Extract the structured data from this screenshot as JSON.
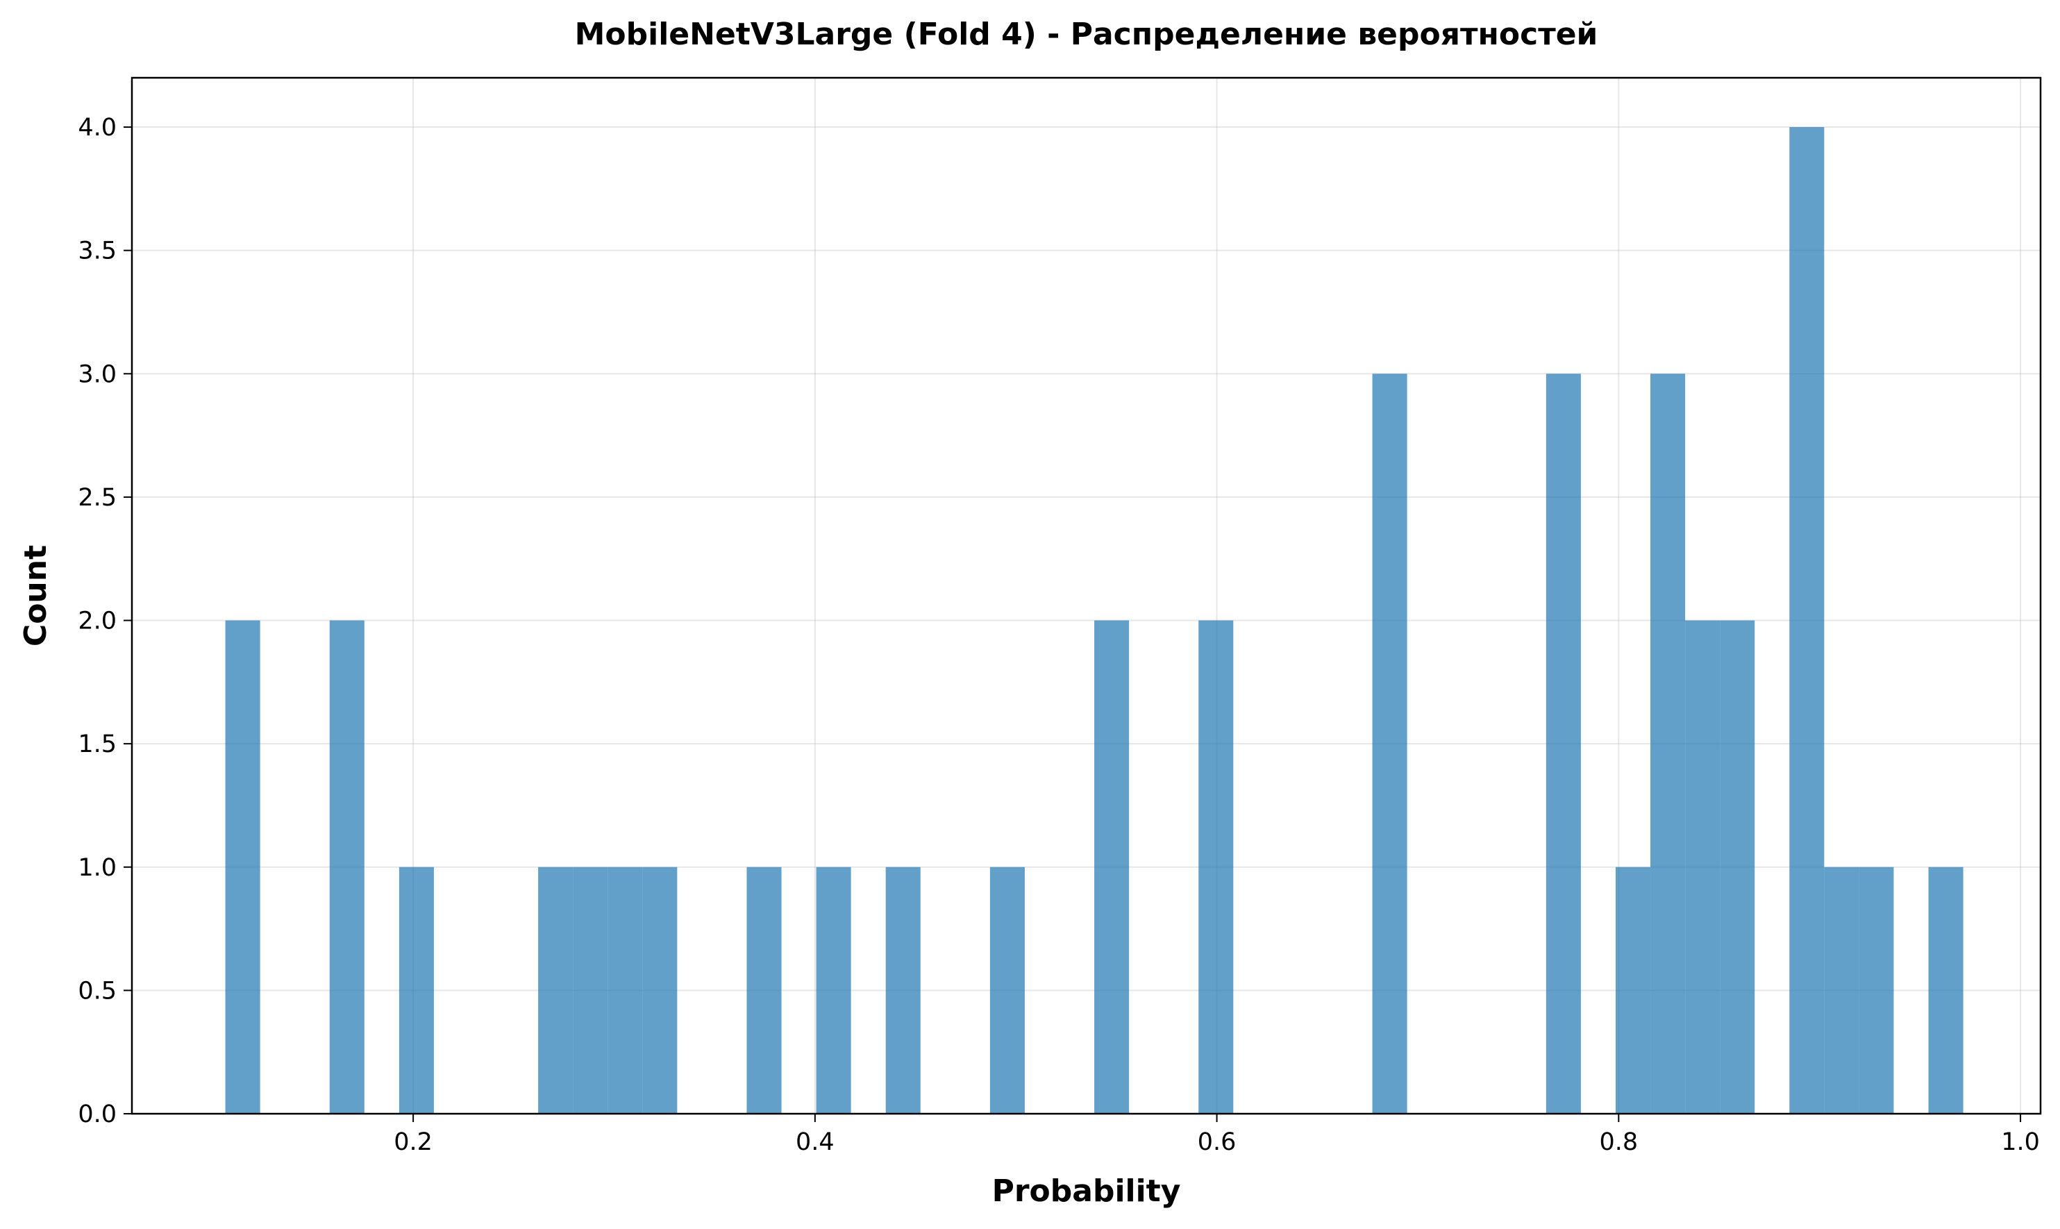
{
  "chart_data": {
    "type": "bar",
    "title": "MobileNetV3Large (Fold 4) - Распределение вероятностей",
    "xlabel": "Probability",
    "ylabel": "Count",
    "xlim": [
      0.06,
      1.01
    ],
    "ylim": [
      0.0,
      4.2
    ],
    "grid": true,
    "bin_width": 0.0173,
    "bars": [
      {
        "x0": 0.1065,
        "count": 2
      },
      {
        "x0": 0.1584,
        "count": 2
      },
      {
        "x0": 0.193,
        "count": 1
      },
      {
        "x0": 0.2622,
        "count": 1
      },
      {
        "x0": 0.2795,
        "count": 1
      },
      {
        "x0": 0.2968,
        "count": 1
      },
      {
        "x0": 0.3141,
        "count": 1
      },
      {
        "x0": 0.366,
        "count": 1
      },
      {
        "x0": 0.4006,
        "count": 1
      },
      {
        "x0": 0.4352,
        "count": 1
      },
      {
        "x0": 0.4871,
        "count": 1
      },
      {
        "x0": 0.539,
        "count": 2
      },
      {
        "x0": 0.5909,
        "count": 2
      },
      {
        "x0": 0.6774,
        "count": 3
      },
      {
        "x0": 0.7639,
        "count": 3
      },
      {
        "x0": 0.7985,
        "count": 1
      },
      {
        "x0": 0.8158,
        "count": 3
      },
      {
        "x0": 0.8331,
        "count": 2
      },
      {
        "x0": 0.8504,
        "count": 2
      },
      {
        "x0": 0.885,
        "count": 4
      },
      {
        "x0": 0.9023,
        "count": 1
      },
      {
        "x0": 0.9196,
        "count": 1
      },
      {
        "x0": 0.9542,
        "count": 1
      }
    ],
    "x_ticks": [
      {
        "value": 0.2,
        "label": "0.2"
      },
      {
        "value": 0.4,
        "label": "0.4"
      },
      {
        "value": 0.6,
        "label": "0.6"
      },
      {
        "value": 0.8,
        "label": "0.8"
      },
      {
        "value": 1.0,
        "label": "1.0"
      }
    ],
    "y_ticks": [
      {
        "value": 0.0,
        "label": "0.0"
      },
      {
        "value": 0.5,
        "label": "0.5"
      },
      {
        "value": 1.0,
        "label": "1.0"
      },
      {
        "value": 1.5,
        "label": "1.5"
      },
      {
        "value": 2.0,
        "label": "2.0"
      },
      {
        "value": 2.5,
        "label": "2.5"
      },
      {
        "value": 3.0,
        "label": "3.0"
      },
      {
        "value": 3.5,
        "label": "3.5"
      },
      {
        "value": 4.0,
        "label": "4.0"
      }
    ],
    "bar_color": "#1f77b4",
    "bar_opacity": 0.7
  }
}
